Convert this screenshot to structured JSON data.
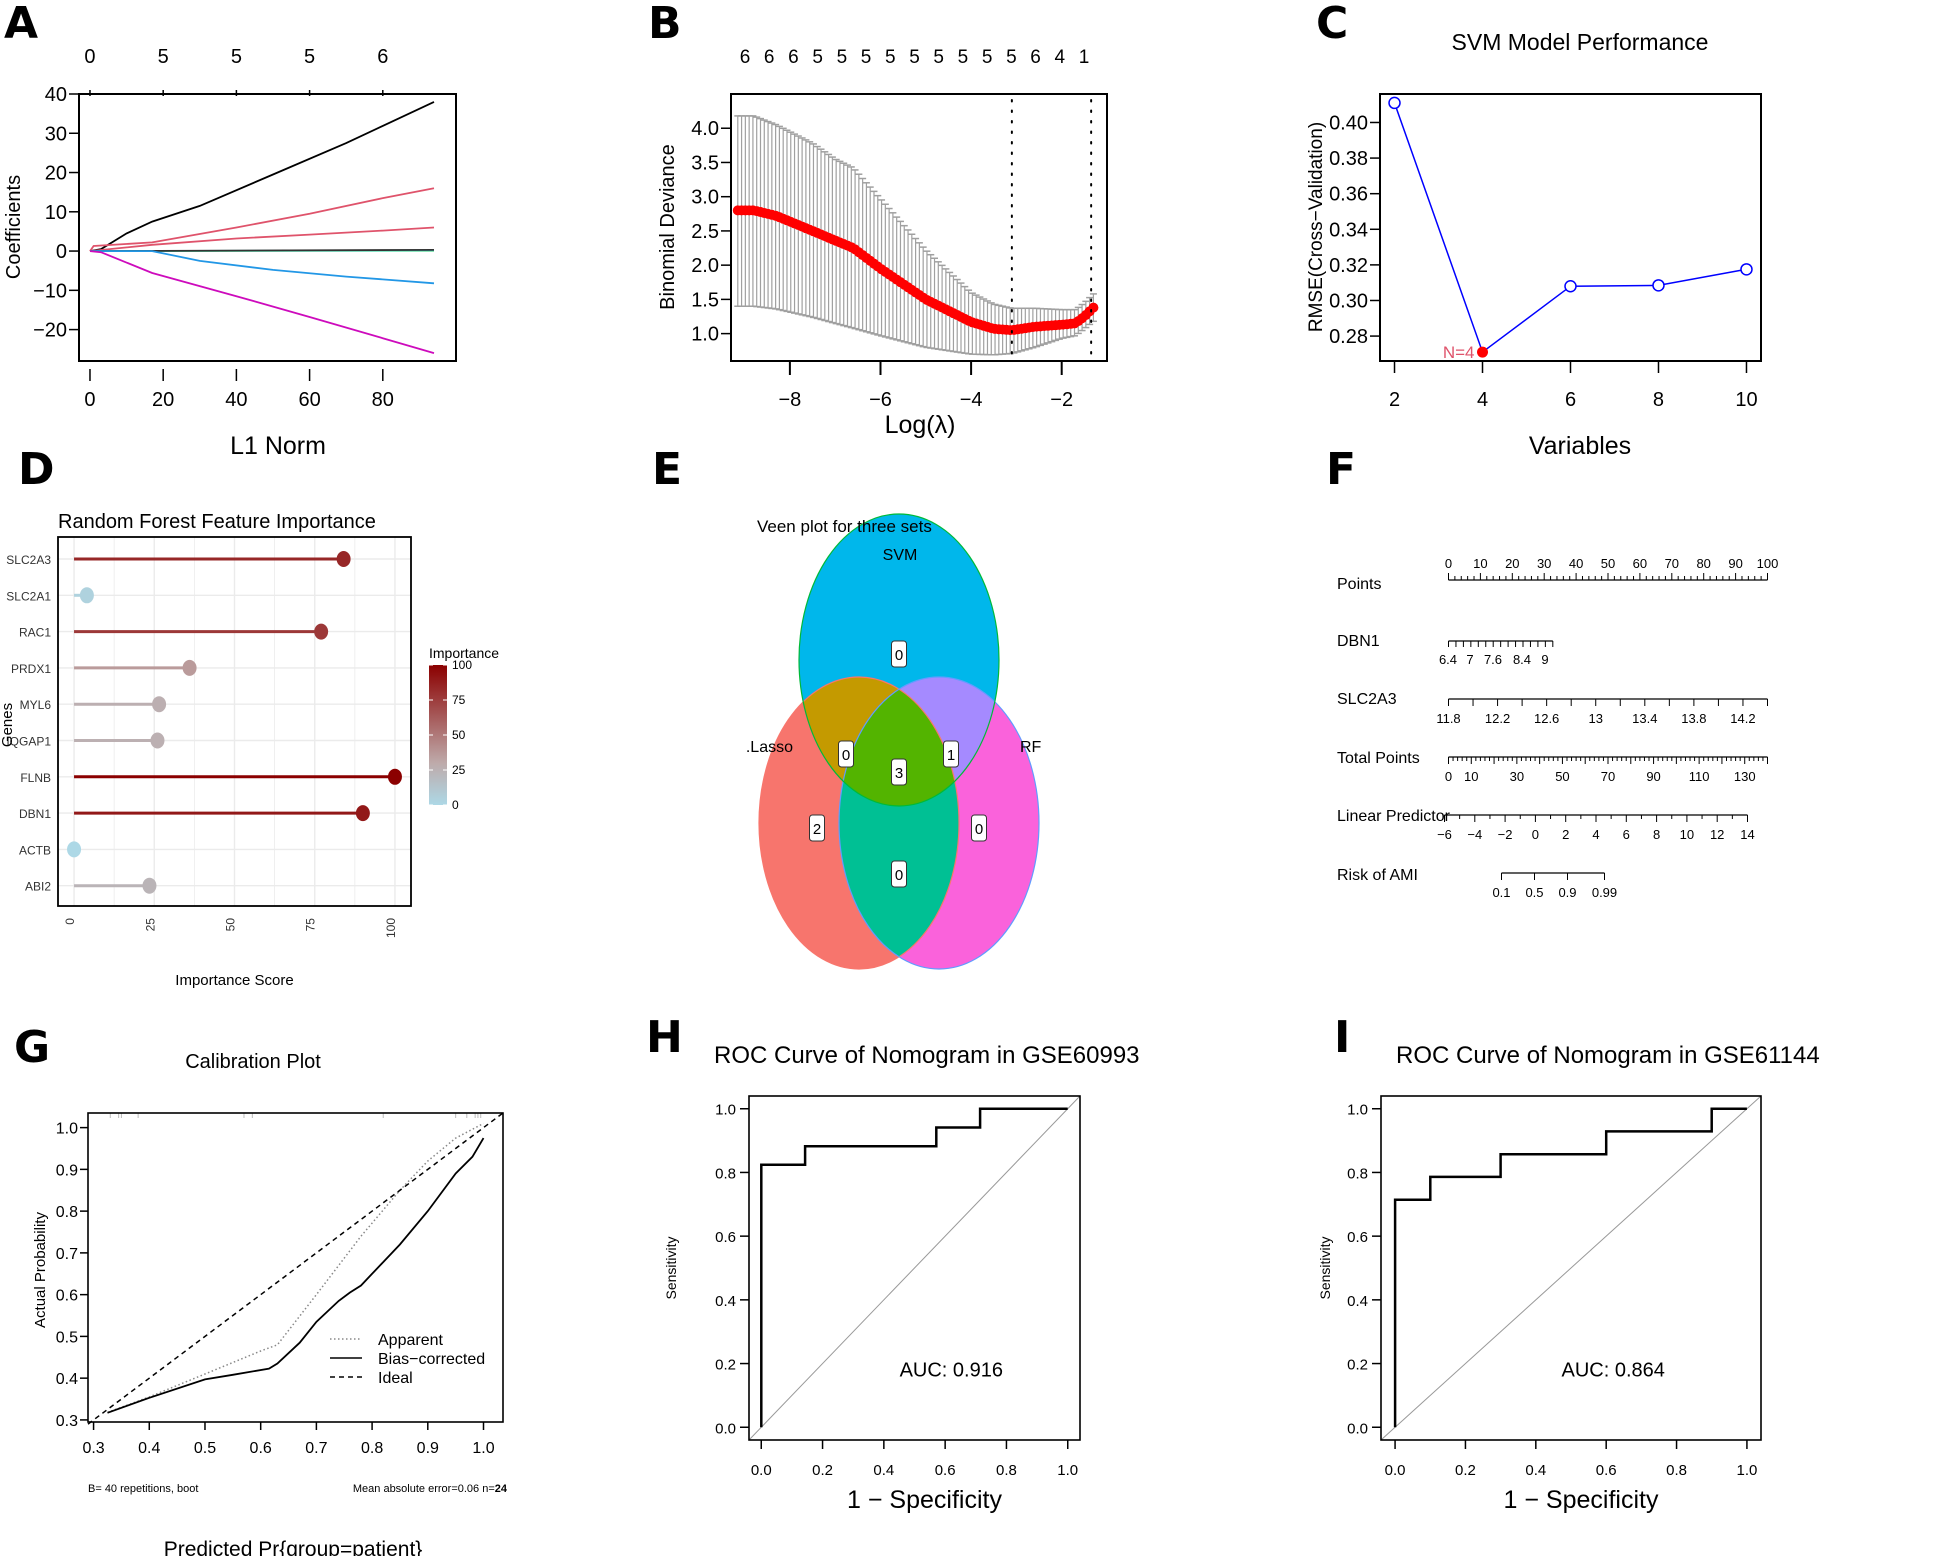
{
  "figure": {
    "panel_letters": [
      "A",
      "B",
      "C",
      "D",
      "E",
      "F",
      "G",
      "H",
      "I"
    ]
  },
  "chart_data": [
    {
      "id": "A",
      "type": "line",
      "title": "",
      "xlabel": "L1 Norm",
      "ylabel": "Coefficients",
      "xlim": [
        -3,
        100
      ],
      "ylim": [
        -28,
        40
      ],
      "xticks": [
        0,
        20,
        40,
        60,
        80
      ],
      "yticks": [
        -20,
        -10,
        0,
        10,
        20,
        30,
        40
      ],
      "top_axis": {
        "positions": [
          0,
          20,
          40,
          60,
          80
        ],
        "labels": [
          "0",
          "5",
          "5",
          "5",
          "6"
        ]
      },
      "series": [
        {
          "name": "path-black",
          "color": "#000000",
          "x": [
            0,
            3,
            10,
            17,
            30,
            50,
            70,
            94
          ],
          "y": [
            0,
            0.5,
            4.5,
            7.5,
            11.5,
            19.5,
            27.5,
            38
          ]
        },
        {
          "name": "path-red-upper",
          "color": "#DF536B",
          "x": [
            0,
            1,
            17,
            40,
            60,
            80,
            94
          ],
          "y": [
            0,
            1.3,
            2.2,
            6,
            9.5,
            13.5,
            16
          ]
        },
        {
          "name": "path-red-lower",
          "color": "#DF536B",
          "x": [
            0,
            17,
            40,
            60,
            80,
            94
          ],
          "y": [
            0,
            1.6,
            3.2,
            4.2,
            5.2,
            6
          ]
        },
        {
          "name": "path-green",
          "color": "#61D04F",
          "x": [
            0,
            94
          ],
          "y": [
            0,
            0.1
          ]
        },
        {
          "name": "path-cyan",
          "color": "#28E2E5",
          "x": [
            0,
            94
          ],
          "y": [
            0,
            0.2
          ]
        },
        {
          "name": "path-dark",
          "color": "#333333",
          "x": [
            0,
            94
          ],
          "y": [
            0,
            0.3
          ]
        },
        {
          "name": "path-blue",
          "color": "#2297E6",
          "x": [
            0,
            17,
            30,
            50,
            70,
            94
          ],
          "y": [
            0,
            0,
            -2.5,
            -4.8,
            -6.5,
            -8.2
          ]
        },
        {
          "name": "path-magenta",
          "color": "#CD0BBC",
          "x": [
            0,
            3,
            17,
            40,
            60,
            80,
            94
          ],
          "y": [
            0,
            -0.3,
            -5.6,
            -11.5,
            -16.8,
            -22.2,
            -26
          ]
        }
      ]
    },
    {
      "id": "B",
      "type": "scatter",
      "title": "",
      "xlabel": "Log(λ)",
      "ylabel": "Binomial Deviance",
      "xlim": [
        -9.3,
        -1.0
      ],
      "ylim": [
        0.6,
        4.5
      ],
      "xticks": [
        -8,
        -6,
        -4,
        -2
      ],
      "yticks": [
        1.0,
        1.5,
        2.0,
        2.5,
        3.0,
        3.5,
        4.0
      ],
      "top_axis": {
        "labels": [
          "6",
          "6",
          "6",
          "5",
          "5",
          "5",
          "5",
          "5",
          "5",
          "5",
          "5",
          "5",
          "6",
          "4",
          "1"
        ]
      },
      "vlines": [
        -3.1,
        -1.35
      ],
      "curve_knots": {
        "x": [
          -9.15,
          -8.8,
          -8.3,
          -7.5,
          -7.0,
          -6.6,
          -6.0,
          -5.0,
          -4.0,
          -3.5,
          -3.1,
          -2.6,
          -2.0,
          -1.7,
          -1.5,
          -1.3
        ],
        "mean": [
          2.8,
          2.8,
          2.72,
          2.5,
          2.36,
          2.25,
          1.95,
          1.5,
          1.17,
          1.07,
          1.05,
          1.1,
          1.13,
          1.15,
          1.25,
          1.38
        ],
        "upper": [
          4.18,
          4.18,
          4.05,
          3.78,
          3.55,
          3.42,
          2.97,
          2.22,
          1.6,
          1.43,
          1.37,
          1.37,
          1.35,
          1.35,
          1.45,
          1.58
        ],
        "lower": [
          1.4,
          1.4,
          1.36,
          1.24,
          1.15,
          1.08,
          0.97,
          0.8,
          0.7,
          0.69,
          0.71,
          0.8,
          0.93,
          0.97,
          1.07,
          1.18
        ]
      },
      "colors": {
        "mean": "#FF0000",
        "error": "#A0A0A0",
        "vline": "#000000"
      }
    },
    {
      "id": "C",
      "type": "line",
      "title": "SVM Model Performance",
      "xlabel": "Variables",
      "ylabel": "RMSE(Cross−Validation)",
      "xlim": [
        1.67,
        10.33
      ],
      "ylim": [
        0.266,
        0.416
      ],
      "xticks": [
        2,
        4,
        6,
        8,
        10
      ],
      "yticks": [
        0.28,
        0.3,
        0.32,
        0.34,
        0.36,
        0.38,
        0.4
      ],
      "x": [
        2,
        4,
        6,
        8,
        10
      ],
      "y": [
        0.411,
        0.271,
        0.308,
        0.3085,
        0.3175
      ],
      "highlight": {
        "x": 4,
        "y": 0.271,
        "label": "N=4"
      },
      "colors": {
        "line": "#0000FF",
        "highlight": "#FF0000",
        "label": "#DF536B"
      }
    },
    {
      "id": "D",
      "type": "scatter",
      "subtype": "lollipop",
      "title": "Random Forest Feature Importance",
      "xlabel": "Importance Score",
      "ylabel": "Genes",
      "xlim": [
        -5,
        105
      ],
      "xticks": [
        0,
        25,
        50,
        75,
        100
      ],
      "categories": [
        "SLC2A3",
        "SLC2A1",
        "RAC1",
        "PRDX1",
        "MYL6",
        "IQGAP1",
        "FLNB",
        "DBN1",
        "ACTB",
        "ABI2"
      ],
      "values": [
        84,
        4,
        77,
        36,
        26.5,
        26,
        100,
        90,
        0,
        23.5
      ],
      "legend": {
        "title": "Importance",
        "ticks": [
          0,
          25,
          50,
          75,
          100
        ],
        "low_color": "#ADD8E6",
        "high_color": "#8B0000",
        "position": "right"
      }
    },
    {
      "id": "E",
      "type": "venn",
      "title": "Veen plot for three sets",
      "sets": [
        "SVM",
        ".Lasso",
        "RF"
      ],
      "regions": [
        {
          "sets": [
            "SVM"
          ],
          "count": "0",
          "color": "#00B7EB"
        },
        {
          "sets": [
            ".Lasso"
          ],
          "count": "2",
          "color": "#F7756D"
        },
        {
          "sets": [
            "RF"
          ],
          "count": "0",
          "color": "#FA62DB"
        },
        {
          "sets": [
            "SVM",
            ".Lasso"
          ],
          "count": "0",
          "color": "#C49A00"
        },
        {
          "sets": [
            "SVM",
            "RF"
          ],
          "count": "1",
          "color": "#A58AFF"
        },
        {
          "sets": [
            ".Lasso",
            "RF"
          ],
          "count": "0",
          "color": "#00C094"
        },
        {
          "sets": [
            "SVM",
            ".Lasso",
            "RF"
          ],
          "count": "3",
          "color": "#53B400"
        }
      ]
    },
    {
      "id": "F",
      "type": "nomogram",
      "rows": [
        {
          "label": "Points",
          "ticks": [
            "0",
            "10",
            "20",
            "30",
            "40",
            "50",
            "60",
            "70",
            "80",
            "90",
            "100"
          ],
          "range_points": [
            0,
            100
          ],
          "labels_above": true,
          "minor_per_major": 5
        },
        {
          "label": "DBN1",
          "ticks": [
            "6.4",
            "7",
            "7.6",
            "8.4",
            "9"
          ],
          "range_points": [
            0,
            32.7
          ],
          "tick_count": 15
        },
        {
          "label": "SLC2A3",
          "ticks": [
            "11.8",
            "12.2",
            "12.6",
            "13",
            "13.4",
            "13.8",
            "14.2"
          ],
          "range_points": [
            0,
            100
          ],
          "tick_count": 14
        },
        {
          "label": "Total Points",
          "ticks": [
            "0",
            "10",
            "30",
            "50",
            "70",
            "90",
            "110",
            "130"
          ],
          "range_total": [
            0,
            140
          ]
        },
        {
          "label": "Linear Predictor",
          "ticks": [
            "−6",
            "−4",
            "−2",
            "0",
            "2",
            "4",
            "6",
            "8",
            "10",
            "12",
            "14"
          ],
          "range_total": [
            -1.0,
            133.0
          ]
        },
        {
          "label": "Risk of AMI",
          "ticks": [
            "0.1",
            "0.5",
            "0.9",
            "0.99"
          ],
          "range_total": [
            23.2,
            68.7
          ]
        }
      ]
    },
    {
      "id": "G",
      "type": "line",
      "title": "Calibration Plot",
      "xlabel": "Predicted Pr{group=patient}",
      "ylabel": "Actual Probability",
      "xlim": [
        0.29,
        1.035
      ],
      "ylim": [
        0.295,
        1.035
      ],
      "xticks": [
        0.3,
        0.4,
        0.5,
        0.6,
        0.7,
        0.8,
        0.9,
        1.0
      ],
      "yticks": [
        0.3,
        0.4,
        0.5,
        0.6,
        0.7,
        0.8,
        0.9,
        1.0
      ],
      "series": [
        {
          "name": "Apparent",
          "style": "dotted",
          "color": "#888888",
          "x": [
            0.325,
            0.4,
            0.5,
            0.6,
            0.63,
            0.7,
            0.78,
            0.85,
            0.9,
            0.95,
            1.0
          ],
          "y": [
            0.318,
            0.355,
            0.41,
            0.465,
            0.48,
            0.6,
            0.74,
            0.85,
            0.92,
            0.975,
            1.01
          ]
        },
        {
          "name": "Bias−corrected",
          "style": "solid",
          "color": "#000000",
          "x": [
            0.325,
            0.4,
            0.5,
            0.55,
            0.615,
            0.63,
            0.67,
            0.7,
            0.74,
            0.76,
            0.78,
            0.8,
            0.85,
            0.9,
            0.95,
            0.98,
            1.0
          ],
          "y": [
            0.317,
            0.353,
            0.397,
            0.408,
            0.423,
            0.435,
            0.485,
            0.535,
            0.585,
            0.605,
            0.622,
            0.65,
            0.72,
            0.8,
            0.89,
            0.93,
            0.975
          ]
        },
        {
          "name": "Ideal",
          "style": "dashed",
          "color": "#000000",
          "x": [
            0.29,
            1.035
          ],
          "y": [
            0.29,
            1.035
          ]
        }
      ],
      "rug": [
        0.33,
        0.345,
        0.35,
        0.38,
        0.57,
        0.585,
        0.82,
        0.95,
        0.97,
        0.985,
        0.99,
        0.995
      ],
      "legend_position": "bottom-right",
      "footer_left": "B= 40 repetitions, boot",
      "footer_right_prefix": "Mean absolute error=0.06 n=",
      "footer_right_n": "24"
    },
    {
      "id": "H",
      "type": "line",
      "title": "ROC Curve of Nomogram in GSE60993",
      "xlabel": "1 − Specificity",
      "ylabel": "Sensitivity",
      "xlim": [
        -0.04,
        1.04
      ],
      "ylim": [
        -0.04,
        1.04
      ],
      "xticks": [
        0.0,
        0.2,
        0.4,
        0.6,
        0.8,
        1.0
      ],
      "yticks": [
        0.0,
        0.2,
        0.4,
        0.6,
        0.8,
        1.0
      ],
      "fpr": [
        0,
        0,
        0.143,
        0.143,
        0.571,
        0.571,
        0.714,
        0.714,
        1.0
      ],
      "tpr": [
        0,
        0.824,
        0.824,
        0.882,
        0.882,
        0.941,
        0.941,
        1.0,
        1.0
      ],
      "auc_label": "AUC: 0.916"
    },
    {
      "id": "I",
      "type": "line",
      "title": "ROC Curve of Nomogram in GSE61144",
      "xlabel": "1 − Specificity",
      "ylabel": "Sensitivity",
      "xlim": [
        -0.04,
        1.04
      ],
      "ylim": [
        -0.04,
        1.04
      ],
      "xticks": [
        0.0,
        0.2,
        0.4,
        0.6,
        0.8,
        1.0
      ],
      "yticks": [
        0.0,
        0.2,
        0.4,
        0.6,
        0.8,
        1.0
      ],
      "fpr": [
        0,
        0,
        0.1,
        0.1,
        0.3,
        0.3,
        0.6,
        0.6,
        0.9,
        0.9,
        1.0
      ],
      "tpr": [
        0,
        0.714,
        0.714,
        0.786,
        0.786,
        0.857,
        0.857,
        0.929,
        0.929,
        1.0,
        1.0
      ],
      "auc_label": "AUC: 0.864"
    }
  ]
}
